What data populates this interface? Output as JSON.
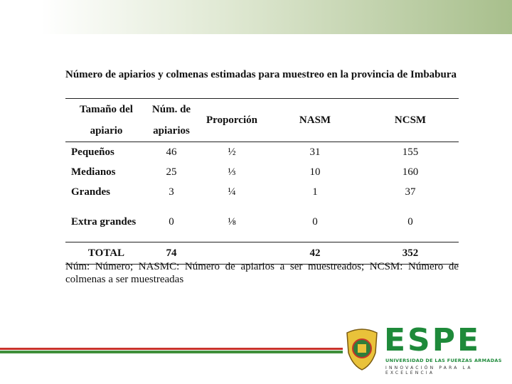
{
  "caption": {
    "title": "Número de apiarios y colmenas estimadas para muestreo en la provincia de Imbabura",
    "note": "Núm: Número; NASMC: Número de apiarios a ser muestreados; NCSM: Número de colmenas a ser muestreadas"
  },
  "table": {
    "header": [
      "Tamaño del apiario",
      "Núm. de apiarios",
      "Proporción",
      "NASM",
      "NCSM"
    ],
    "rows": [
      [
        "Pequeños",
        46,
        "½",
        31,
        155
      ],
      [
        "Medianos",
        25,
        "⅓",
        10,
        160
      ],
      [
        "Grandes",
        3,
        "¼",
        1,
        37
      ],
      [
        "Extra grandes",
        0,
        "⅛",
        0,
        0
      ]
    ],
    "total": {
      "label": "TOTAL",
      "apiarios": 74,
      "nasm": 42,
      "ncsm": 352
    }
  },
  "logo": {
    "name": "ESPE",
    "subtitle": "UNIVERSIDAD DE LAS FUERZAS ARMADAS",
    "motto": "INNOVACIÓN PARA LA EXCELENCIA"
  }
}
